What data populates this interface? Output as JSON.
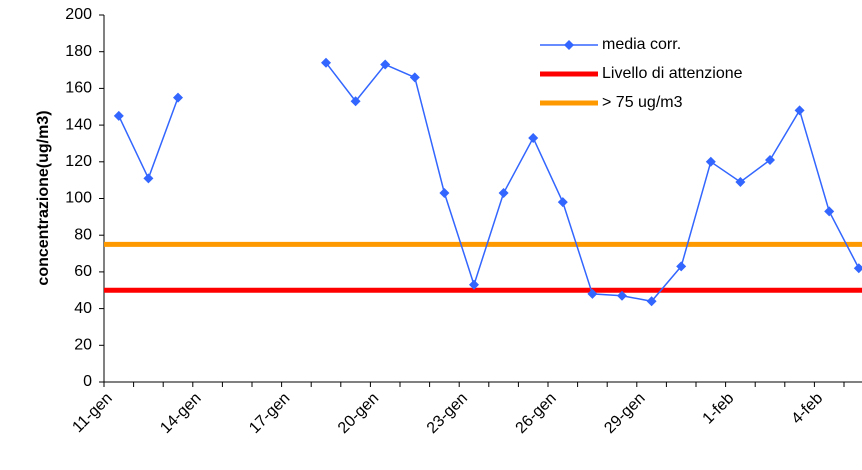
{
  "chart_data": {
    "type": "line",
    "y_label": "concentrazione(ug/m3)",
    "categories": [
      "11-gen",
      null,
      null,
      "14-gen",
      null,
      null,
      "17-gen",
      null,
      null,
      "20-gen",
      null,
      null,
      "23-gen",
      null,
      null,
      "26-gen",
      null,
      null,
      "29-gen",
      null,
      null,
      "1-feb",
      null,
      null,
      "4-feb",
      null
    ],
    "series": [
      {
        "name": "media corr.",
        "color": "#3366ff",
        "values": [
          145,
          111,
          155,
          null,
          null,
          null,
          null,
          174,
          153,
          173,
          166,
          103,
          53,
          103,
          133,
          98,
          48,
          47,
          44,
          63,
          120,
          109,
          121,
          148,
          93,
          62
        ]
      }
    ],
    "reference_lines": [
      {
        "name": "Livello di attenzione",
        "color": "#ff0000",
        "value": 50
      },
      {
        "name": "> 75 ug/m3",
        "color": "#ff9900",
        "value": 75
      }
    ],
    "ylim": [
      0,
      200
    ],
    "yticks": [
      0,
      20,
      40,
      60,
      80,
      100,
      120,
      140,
      160,
      180,
      200
    ],
    "legend": "upper-right"
  }
}
